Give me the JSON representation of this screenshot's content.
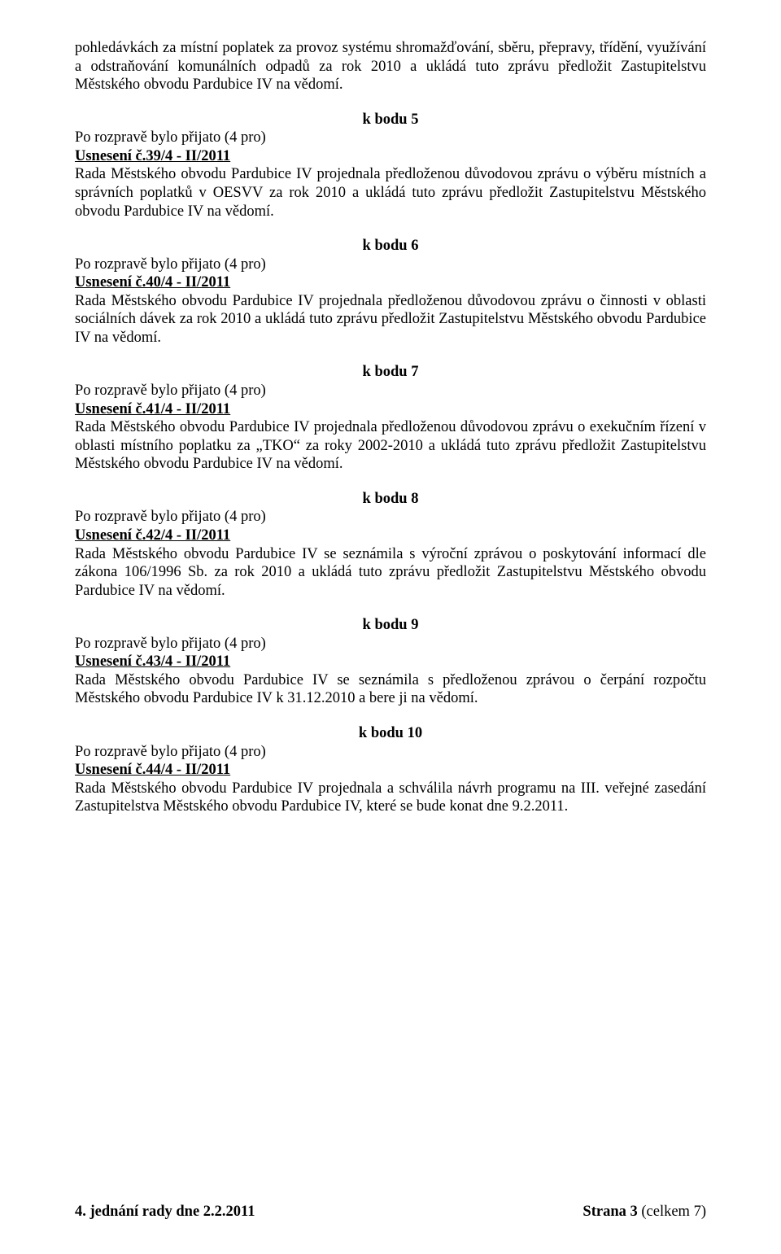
{
  "intro_paragraph": "pohledávkách za místní poplatek za provoz systému shromažďování, sběru, přepravy, třídění, využívání a odstraňování komunálních odpadů za rok 2010 a ukládá tuto zprávu předložit Zastupitelstvu Městského obvodu Pardubice IV na vědomí.",
  "vote_line": "Po rozpravě bylo přijato (4 pro)",
  "sections": [
    {
      "heading": "k bodu 5",
      "usneseni": "Usnesení č.39/4 - II/2011",
      "text": "Rada Městského obvodu Pardubice IV projednala předloženou důvodovou zprávu o výběru místních a správních poplatků v OESVV za rok 2010 a ukládá tuto zprávu předložit Zastupitelstvu Městského obvodu Pardubice IV na vědomí."
    },
    {
      "heading": "k bodu 6",
      "usneseni": "Usnesení č.40/4 - II/2011",
      "text": "Rada Městského obvodu Pardubice IV projednala předloženou důvodovou zprávu o činnosti v oblasti sociálních dávek za rok 2010 a ukládá tuto zprávu předložit Zastupitelstvu Městského obvodu Pardubice IV na vědomí."
    },
    {
      "heading": "k bodu 7",
      "usneseni": "Usnesení č.41/4 - II/2011",
      "text": "Rada Městského obvodu Pardubice IV projednala předloženou důvodovou zprávu o exekučním řízení v oblasti místního poplatku za „TKO“ za roky 2002-2010 a ukládá tuto zprávu předložit Zastupitelstvu Městského obvodu Pardubice IV na vědomí."
    },
    {
      "heading": "k bodu 8",
      "usneseni": "Usnesení č.42/4 - II/2011",
      "text": "Rada Městského obvodu Pardubice IV se seznámila s výroční zprávou o poskytování informací dle zákona 106/1996 Sb. za rok 2010 a ukládá tuto zprávu předložit Zastupitelstvu Městského obvodu Pardubice IV na vědomí."
    },
    {
      "heading": "k bodu 9",
      "usneseni": "Usnesení č.43/4 - II/2011",
      "text": "Rada Městského obvodu Pardubice IV se seznámila s předloženou zprávou o čerpání rozpočtu Městského obvodu Pardubice IV k 31.12.2010 a bere ji na vědomí."
    },
    {
      "heading": "k bodu 10",
      "usneseni": "Usnesení č.44/4 - II/2011",
      "text": "Rada Městského obvodu Pardubice IV projednala a schválila návrh programu na III. veřejné zasedání Zastupitelstva Městského obvodu Pardubice IV, které se bude konat dne 9.2.2011."
    }
  ],
  "footer": {
    "left": "4. jednání rady dne 2.2.2011",
    "right_label": "Strana ",
    "page_num": "3",
    "total_label": " (celkem 7)"
  }
}
